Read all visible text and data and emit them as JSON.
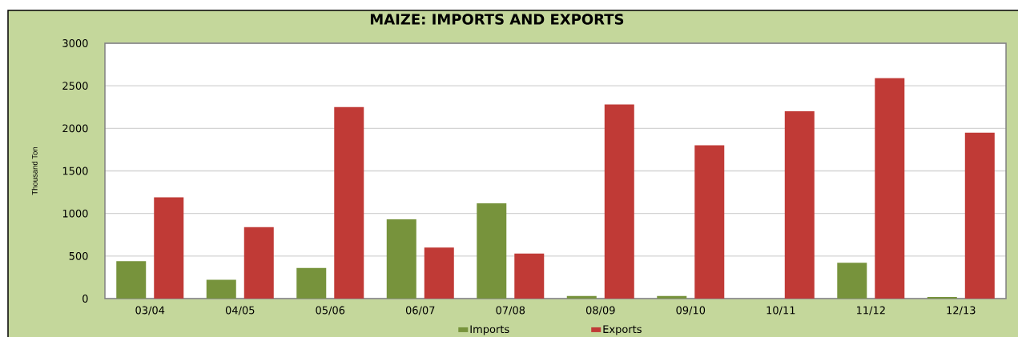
{
  "chart_data": {
    "type": "bar",
    "title": "MAIZE: IMPORTS AND EXPORTS",
    "ylabel": "Thousand Ton",
    "categories": [
      "03/04",
      "04/05",
      "05/06",
      "06/07",
      "07/08",
      "08/09",
      "09/10",
      "10/11",
      "11/12",
      "12/13"
    ],
    "series": [
      {
        "name": "Imports",
        "color": "#77933c",
        "values": [
          440,
          220,
          360,
          930,
          1120,
          30,
          30,
          0,
          420,
          20
        ]
      },
      {
        "name": "Exports",
        "color": "#c03a36",
        "values": [
          1190,
          840,
          2250,
          600,
          530,
          2280,
          1800,
          2200,
          2590,
          1950
        ]
      }
    ],
    "ylim": [
      0,
      3000
    ],
    "yticks": [
      0,
      500,
      1000,
      1500,
      2000,
      2500,
      3000
    ],
    "grid": "y",
    "legend": "bottom"
  }
}
